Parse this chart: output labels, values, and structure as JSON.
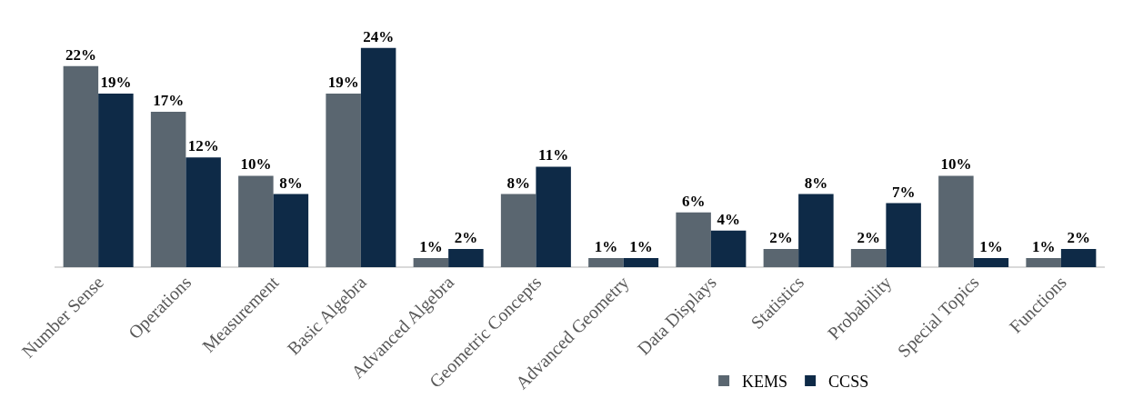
{
  "chart_data": {
    "type": "bar",
    "categories": [
      "Number Sense",
      "Operations",
      "Measurement",
      "Basic Algebra",
      "Advanced Algebra",
      "Geometric Concepts",
      "Advanced Geometry",
      "Data Displays",
      "Statistics",
      "Probability",
      "Special Topics",
      "Functions"
    ],
    "series": [
      {
        "name": "KEMS",
        "color": "#5a6670",
        "values": [
          22,
          17,
          10,
          19,
          1,
          8,
          1,
          6,
          2,
          2,
          10,
          1
        ],
        "value_labels": [
          "22%",
          "17%",
          "10%",
          "19%",
          "1%",
          "8%",
          "1%",
          "6%",
          "2%",
          "2%",
          "10%",
          "1%"
        ]
      },
      {
        "name": "CCSS",
        "color": "#0e2a47",
        "values": [
          19,
          12,
          8,
          24,
          2,
          11,
          1,
          4,
          8,
          7,
          1,
          2
        ],
        "value_labels": [
          "19%",
          "12%",
          "8%",
          "24%",
          "2%",
          "11%",
          "1%",
          "4%",
          "8%",
          "7%",
          "1%",
          "2%"
        ]
      }
    ],
    "legend": "bottom",
    "grid": false,
    "tick_labels": "x"
  }
}
